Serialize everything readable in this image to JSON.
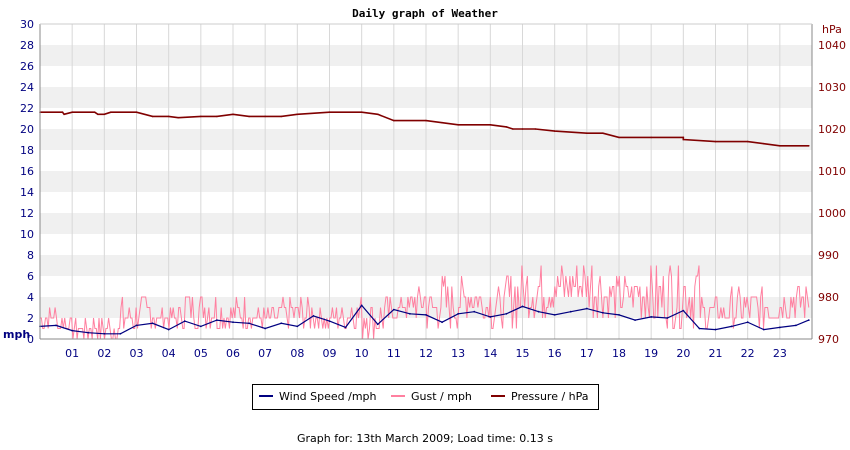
{
  "chart_data": {
    "type": "line",
    "title": "Daily graph of Weather",
    "left_axis": {
      "unit_label": "mph",
      "range": [
        0,
        30
      ],
      "ticks": [
        0,
        2,
        4,
        6,
        8,
        10,
        12,
        14,
        16,
        18,
        20,
        22,
        24,
        26,
        28,
        30
      ]
    },
    "right_axis": {
      "unit_label": "hPa",
      "range": [
        970,
        1045
      ],
      "ticks": [
        970,
        980,
        990,
        1000,
        1010,
        1020,
        1030,
        1040
      ]
    },
    "x_axis": {
      "range": [
        0,
        24
      ],
      "tick_labels": [
        "01",
        "02",
        "03",
        "04",
        "05",
        "06",
        "07",
        "08",
        "09",
        "10",
        "11",
        "12",
        "13",
        "14",
        "15",
        "16",
        "17",
        "18",
        "19",
        "20",
        "21",
        "22",
        "23"
      ]
    },
    "grid": true,
    "legend_placement": "bottom",
    "series": [
      {
        "name": "Wind Speed /mph",
        "axis": "left",
        "color": "#000080",
        "x": [
          0,
          0.5,
          1,
          1.5,
          2,
          2.5,
          3,
          3.5,
          4,
          4.5,
          5,
          5.5,
          6,
          6.5,
          7,
          7.5,
          8,
          8.5,
          9,
          9.5,
          10,
          10.5,
          11,
          11.5,
          12,
          12.5,
          13,
          13.5,
          14,
          14.5,
          15,
          15.5,
          16,
          16.5,
          17,
          17.5,
          18,
          18.5,
          19,
          19.5,
          20,
          20.5,
          21,
          21.5,
          22,
          22.5,
          23,
          23.5,
          23.9
        ],
        "values": [
          1.2,
          1.3,
          0.8,
          0.6,
          0.5,
          0.5,
          1.3,
          1.5,
          0.9,
          1.7,
          1.2,
          1.8,
          1.6,
          1.5,
          1.0,
          1.5,
          1.2,
          2.2,
          1.7,
          1.1,
          3.2,
          1.4,
          2.8,
          2.4,
          2.3,
          1.6,
          2.4,
          2.6,
          2.1,
          2.4,
          3.1,
          2.6,
          2.3,
          2.6,
          2.9,
          2.5,
          2.3,
          1.8,
          2.1,
          2.0,
          2.7,
          1.0,
          0.9,
          1.2,
          1.6,
          0.9,
          1.1,
          1.3,
          1.8
        ]
      },
      {
        "name": "Gust / mph",
        "axis": "left",
        "color": "#ff80a0",
        "x": [
          0,
          0.5,
          1,
          1.5,
          2,
          2.5,
          3,
          3.5,
          4,
          4.5,
          5,
          5.5,
          6,
          6.5,
          7,
          7.5,
          8,
          8.5,
          9,
          9.5,
          10,
          10.5,
          11,
          11.5,
          12,
          12.5,
          13,
          13.5,
          14,
          14.5,
          15,
          15.5,
          16,
          16.5,
          17,
          17.5,
          18,
          18.5,
          19,
          19.5,
          20,
          20.5,
          21,
          21.5,
          22,
          22.5,
          23,
          23.5,
          23.9
        ],
        "values": [
          2,
          1,
          1,
          0,
          1,
          0,
          3,
          1,
          2,
          1,
          4,
          1,
          3,
          1,
          2,
          1,
          3,
          1,
          2,
          1,
          3,
          0,
          3,
          2,
          4,
          1,
          5,
          2,
          4,
          1,
          6,
          2,
          6,
          3,
          7,
          2,
          5,
          2,
          6,
          1,
          7,
          1,
          3,
          1,
          4,
          1,
          4,
          2,
          4
        ],
        "range_min": 0,
        "range_max": 7
      },
      {
        "name": "Pressure / hPa",
        "axis": "right",
        "color": "#800000",
        "x": [
          0,
          0.7,
          0.75,
          1,
          1.7,
          1.8,
          2,
          2.2,
          3,
          3.5,
          4,
          4.3,
          5,
          5.5,
          6,
          6.5,
          7,
          7.5,
          8,
          9,
          10,
          10.5,
          11,
          12,
          12.5,
          13,
          14,
          14.5,
          14.7,
          15,
          15.4,
          16,
          17,
          17.5,
          18,
          19,
          20,
          20,
          21,
          22,
          22.5,
          23,
          23.9
        ],
        "values": [
          1024,
          1024,
          1023.5,
          1024,
          1024,
          1023.5,
          1023.5,
          1024,
          1024,
          1023,
          1023,
          1022.7,
          1023,
          1023,
          1023.5,
          1023,
          1023,
          1023,
          1023.5,
          1024,
          1024,
          1023.5,
          1022,
          1022,
          1021.5,
          1021,
          1021,
          1020.5,
          1020,
          1020,
          1020,
          1019.5,
          1019,
          1019,
          1018,
          1018,
          1018,
          1017.5,
          1017,
          1017,
          1016.5,
          1016,
          1016
        ]
      }
    ]
  },
  "legend": {
    "wind_label": "Wind Speed /mph",
    "gust_label": "Gust / mph",
    "pressure_label": "Pressure / hPa"
  },
  "footer": "Graph for: 13th March 2009; Load time: 0.13 s"
}
